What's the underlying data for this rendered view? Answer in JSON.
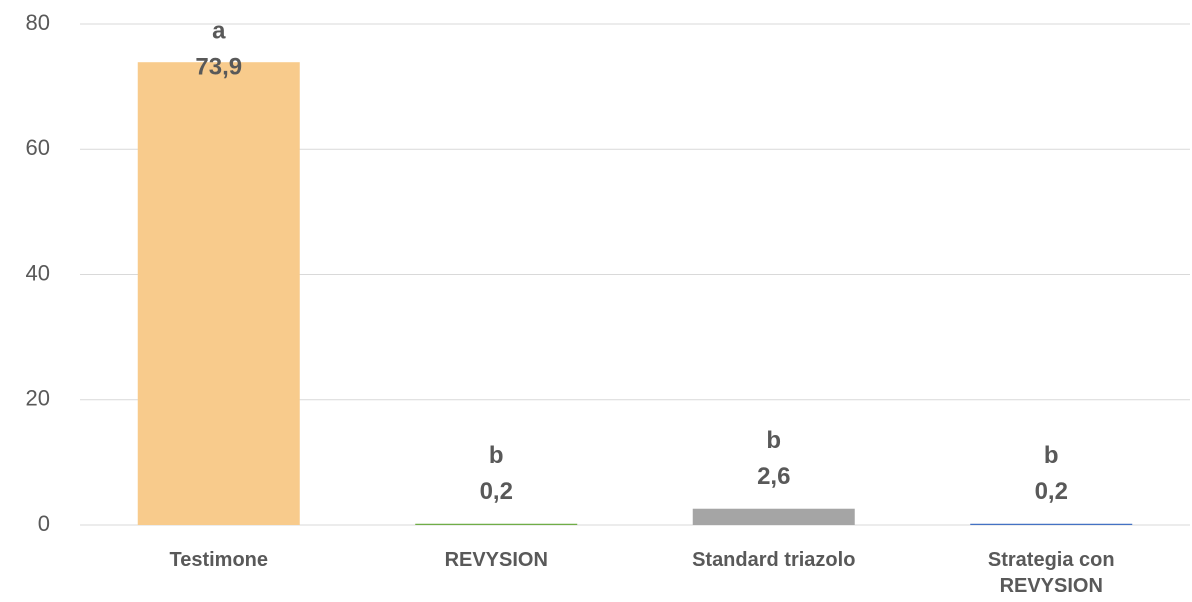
{
  "chart_data": {
    "type": "bar",
    "categories": [
      "Testimone",
      "REVYSION",
      "Standard triazolo",
      "Strategia con REVYSION"
    ],
    "values": [
      73.9,
      0.2,
      2.6,
      0.2
    ],
    "value_labels": [
      "73,9",
      "0,2",
      "2,6",
      "0,2"
    ],
    "letters": [
      "a",
      "b",
      "b",
      "b"
    ],
    "colors": [
      "#f8cb8c",
      "#70ad47",
      "#a5a5a5",
      "#4472c4"
    ],
    "ylim": [
      0,
      80
    ],
    "yticks": [
      0,
      20,
      40,
      60,
      80
    ],
    "grid": true
  }
}
